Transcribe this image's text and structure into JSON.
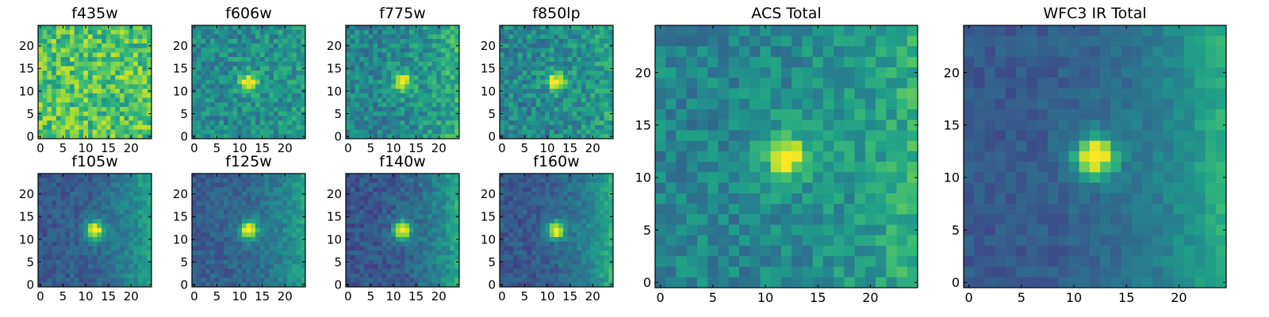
{
  "figure": {
    "background": "#ffffff",
    "colormap": "viridis",
    "colormap_stops": [
      "#440154",
      "#482878",
      "#3e4989",
      "#31688e",
      "#26828e",
      "#1f9e89",
      "#35b779",
      "#6ece58",
      "#b5de2b",
      "#fde725"
    ]
  },
  "chart_data": [
    {
      "type": "heatmap",
      "title": "f435w",
      "xlabel": "",
      "ylabel": "",
      "grid_size": [
        25,
        25
      ],
      "xlim": [
        0,
        24
      ],
      "ylim": [
        0,
        24
      ],
      "x_ticks": [
        0,
        5,
        10,
        15,
        20
      ],
      "y_ticks": [
        0,
        5,
        10,
        15,
        20
      ],
      "x_tick_labels": [
        "0",
        "5",
        "10",
        "15",
        "20"
      ],
      "y_tick_labels": [
        "0",
        "5",
        "10",
        "15",
        "20"
      ],
      "grid": false,
      "source_center": null,
      "source_level": 0,
      "background_level": 0.72,
      "noise": 0.2,
      "seed": 11,
      "gradient_right": 0
    },
    {
      "type": "heatmap",
      "title": "f606w",
      "xlabel": "",
      "ylabel": "",
      "grid_size": [
        25,
        25
      ],
      "xlim": [
        0,
        24
      ],
      "ylim": [
        0,
        24
      ],
      "x_ticks": [
        0,
        5,
        10,
        15,
        20
      ],
      "y_ticks": [
        0,
        5,
        10,
        15,
        20
      ],
      "x_tick_labels": [
        "0",
        "5",
        "10",
        "15",
        "20"
      ],
      "y_tick_labels": [
        "0",
        "5",
        "10",
        "15",
        "20"
      ],
      "grid": false,
      "source_center": [
        12,
        12
      ],
      "source_level": 0.95,
      "background_level": 0.48,
      "noise": 0.14,
      "seed": 23,
      "gradient_right": 0.08
    },
    {
      "type": "heatmap",
      "title": "f775w",
      "xlabel": "",
      "ylabel": "",
      "grid_size": [
        25,
        25
      ],
      "xlim": [
        0,
        24
      ],
      "ylim": [
        0,
        24
      ],
      "x_ticks": [
        0,
        5,
        10,
        15,
        20
      ],
      "y_ticks": [
        0,
        5,
        10,
        15,
        20
      ],
      "x_tick_labels": [
        "0",
        "5",
        "10",
        "15",
        "20"
      ],
      "y_tick_labels": [
        "0",
        "5",
        "10",
        "15",
        "20"
      ],
      "grid": false,
      "source_center": [
        12,
        12
      ],
      "source_level": 0.95,
      "background_level": 0.45,
      "noise": 0.14,
      "seed": 37,
      "gradient_right": 0.2
    },
    {
      "type": "heatmap",
      "title": "f850lp",
      "xlabel": "",
      "ylabel": "",
      "grid_size": [
        25,
        25
      ],
      "xlim": [
        0,
        24
      ],
      "ylim": [
        0,
        24
      ],
      "x_ticks": [
        0,
        5,
        10,
        15,
        20
      ],
      "y_ticks": [
        0,
        5,
        10,
        15,
        20
      ],
      "x_tick_labels": [
        "0",
        "5",
        "10",
        "15",
        "20"
      ],
      "y_tick_labels": [
        "0",
        "5",
        "10",
        "15",
        "20"
      ],
      "grid": false,
      "source_center": [
        12,
        12
      ],
      "source_level": 0.95,
      "background_level": 0.46,
      "noise": 0.15,
      "seed": 41,
      "gradient_right": 0.12
    },
    {
      "type": "heatmap",
      "title": "f105w",
      "xlabel": "",
      "ylabel": "",
      "grid_size": [
        25,
        25
      ],
      "xlim": [
        0,
        24
      ],
      "ylim": [
        0,
        24
      ],
      "x_ticks": [
        0,
        5,
        10,
        15,
        20
      ],
      "y_ticks": [
        0,
        5,
        10,
        15,
        20
      ],
      "x_tick_labels": [
        "0",
        "5",
        "10",
        "15",
        "20"
      ],
      "y_tick_labels": [
        "0",
        "5",
        "10",
        "15",
        "20"
      ],
      "grid": false,
      "source_center": [
        12,
        12
      ],
      "source_level": 0.97,
      "background_level": 0.28,
      "noise": 0.08,
      "seed": 53,
      "gradient_right": 0.32
    },
    {
      "type": "heatmap",
      "title": "f125w",
      "xlabel": "",
      "ylabel": "",
      "grid_size": [
        25,
        25
      ],
      "xlim": [
        0,
        24
      ],
      "ylim": [
        0,
        24
      ],
      "x_ticks": [
        0,
        5,
        10,
        15,
        20
      ],
      "y_ticks": [
        0,
        5,
        10,
        15,
        20
      ],
      "x_tick_labels": [
        "0",
        "5",
        "10",
        "15",
        "20"
      ],
      "y_tick_labels": [
        "0",
        "5",
        "10",
        "15",
        "20"
      ],
      "grid": false,
      "source_center": [
        12,
        12
      ],
      "source_level": 0.97,
      "background_level": 0.3,
      "noise": 0.08,
      "seed": 67,
      "gradient_right": 0.28
    },
    {
      "type": "heatmap",
      "title": "f140w",
      "xlabel": "",
      "ylabel": "",
      "grid_size": [
        25,
        25
      ],
      "xlim": [
        0,
        24
      ],
      "ylim": [
        0,
        24
      ],
      "x_ticks": [
        0,
        5,
        10,
        15,
        20
      ],
      "y_ticks": [
        0,
        5,
        10,
        15,
        20
      ],
      "x_tick_labels": [
        "0",
        "5",
        "10",
        "15",
        "20"
      ],
      "y_tick_labels": [
        "0",
        "5",
        "10",
        "15",
        "20"
      ],
      "grid": false,
      "source_center": [
        12,
        12
      ],
      "source_level": 0.97,
      "background_level": 0.26,
      "noise": 0.09,
      "seed": 71,
      "gradient_right": 0.34
    },
    {
      "type": "heatmap",
      "title": "f160w",
      "xlabel": "",
      "ylabel": "",
      "grid_size": [
        25,
        25
      ],
      "xlim": [
        0,
        24
      ],
      "ylim": [
        0,
        24
      ],
      "x_ticks": [
        0,
        5,
        10,
        15,
        20
      ],
      "y_ticks": [
        0,
        5,
        10,
        15,
        20
      ],
      "x_tick_labels": [
        "0",
        "5",
        "10",
        "15",
        "20"
      ],
      "y_tick_labels": [
        "0",
        "5",
        "10",
        "15",
        "20"
      ],
      "grid": false,
      "source_center": [
        12,
        12
      ],
      "source_level": 0.97,
      "background_level": 0.27,
      "noise": 0.08,
      "seed": 83,
      "gradient_right": 0.36
    },
    {
      "type": "heatmap",
      "title": "ACS Total",
      "xlabel": "",
      "ylabel": "",
      "grid_size": [
        25,
        25
      ],
      "xlim": [
        0,
        24
      ],
      "ylim": [
        0,
        24
      ],
      "x_ticks": [
        0,
        5,
        10,
        15,
        20
      ],
      "y_ticks": [
        0,
        5,
        10,
        15,
        20
      ],
      "x_tick_labels": [
        "0",
        "5",
        "10",
        "15",
        "20"
      ],
      "y_tick_labels": [
        "0",
        "5",
        "10",
        "15",
        "20"
      ],
      "grid": false,
      "source_center": [
        12,
        12
      ],
      "source_level": 0.98,
      "background_level": 0.45,
      "noise": 0.12,
      "seed": 97,
      "gradient_right": 0.18
    },
    {
      "type": "heatmap",
      "title": "WFC3 IR Total",
      "xlabel": "",
      "ylabel": "",
      "grid_size": [
        25,
        25
      ],
      "xlim": [
        0,
        24
      ],
      "ylim": [
        0,
        24
      ],
      "x_ticks": [
        0,
        5,
        10,
        15,
        20
      ],
      "y_ticks": [
        0,
        5,
        10,
        15,
        20
      ],
      "x_tick_labels": [
        "0",
        "5",
        "10",
        "15",
        "20"
      ],
      "y_tick_labels": [
        "0",
        "5",
        "10",
        "15",
        "20"
      ],
      "grid": false,
      "source_center": [
        12,
        12
      ],
      "source_level": 0.98,
      "background_level": 0.28,
      "noise": 0.06,
      "seed": 103,
      "gradient_right": 0.34
    }
  ]
}
